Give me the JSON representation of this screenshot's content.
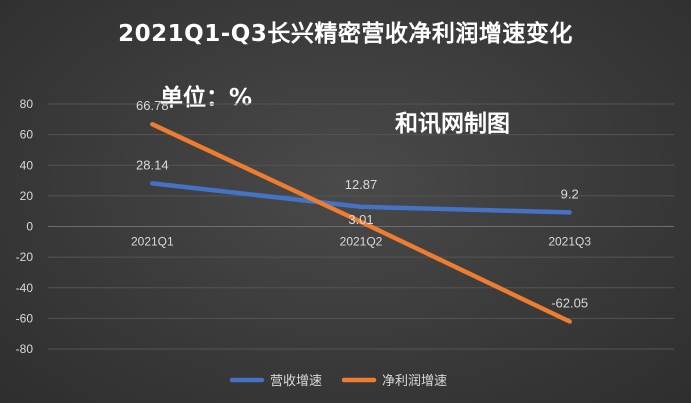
{
  "chart_data": {
    "type": "line",
    "title": "2021Q1-Q3长兴精密营收净利润增速变化",
    "unit_label": "单位：%",
    "source_label": "和讯网制图",
    "categories": [
      "2021Q1",
      "2021Q2",
      "2021Q3"
    ],
    "series": [
      {
        "name": "营收增速",
        "color": "#4472c4",
        "values": [
          28.14,
          12.87,
          9.2
        ]
      },
      {
        "name": "净利润增速",
        "color": "#ed7d31",
        "values": [
          66.78,
          3.01,
          -62.05
        ]
      }
    ],
    "ylim": [
      -80,
      80
    ],
    "yticks": [
      80,
      60,
      40,
      20,
      0,
      -20,
      -40,
      -60,
      -80
    ],
    "grid": true,
    "legend_position": "bottom"
  }
}
